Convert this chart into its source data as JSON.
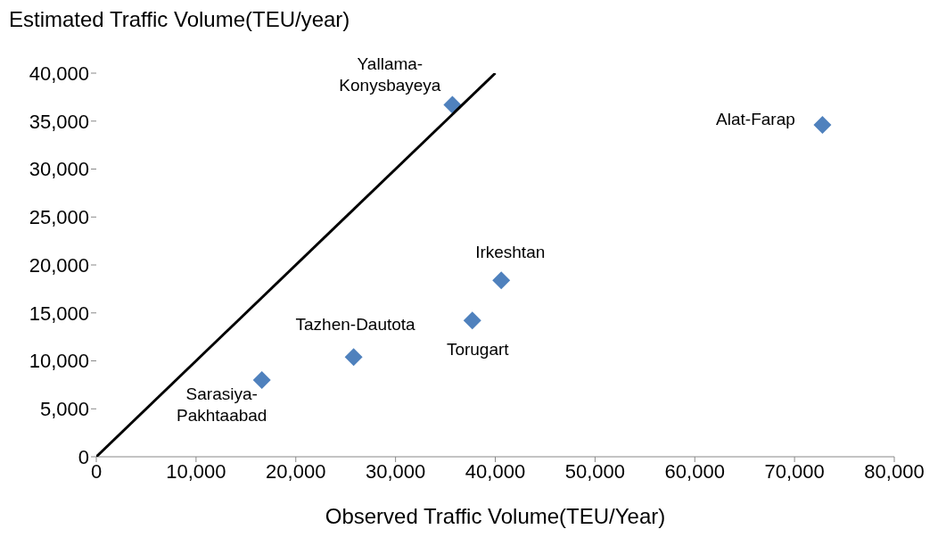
{
  "chart_data": {
    "type": "scatter",
    "xlabel": "Observed Traffic Volume(TEU/Year)",
    "ylabel": "Estimated Traffic Volume(TEU/year)",
    "series": [
      {
        "color": "#4f81bd",
        "x": [
          35700,
          72800,
          40600,
          37700,
          25800,
          16600
        ],
        "values": [
          36700,
          34600,
          18400,
          14200,
          10400,
          8000
        ],
        "marker": "diamond"
      },
      {
        "type": "line",
        "color": "#000000",
        "x": [
          0,
          40000
        ],
        "values": [
          0,
          40000
        ],
        "marker": "none",
        "line_style": "solid"
      }
    ],
    "annotations": [
      {
        "text": "Yallama-\nKonysbayeya",
        "x": 35700,
        "y": 36700
      },
      {
        "text": "Alat-Farap",
        "x": 72800,
        "y": 34600
      },
      {
        "text": "Irkeshtan",
        "x": 40600,
        "y": 18400
      },
      {
        "text": "Torugart",
        "x": 37700,
        "y": 14200
      },
      {
        "text": "Tazhen-Dautota",
        "x": 25800,
        "y": 10400
      },
      {
        "text": "Sarasiya-\nPakhtaabad",
        "x": 16600,
        "y": 8000
      }
    ],
    "xlim": [
      0,
      80000
    ],
    "xticks": [
      0,
      {
        "value": 10000,
        "label": "10,000"
      },
      {
        "value": 20000,
        "label": "20,000"
      },
      {
        "value": 30000,
        "label": "30,000"
      },
      {
        "value": 40000,
        "label": "40,000"
      },
      {
        "value": 50000,
        "label": "50,000"
      },
      {
        "value": 60000,
        "label": "60,000"
      },
      {
        "value": 70000,
        "label": "70,000"
      },
      {
        "value": 80000,
        "label": "80,000"
      }
    ],
    "ylim": [
      0,
      40000
    ],
    "yticks": [
      0,
      {
        "value": 5000,
        "label": "5,000"
      },
      {
        "value": 10000,
        "label": "10,000"
      },
      {
        "value": 15000,
        "label": "15,000"
      },
      {
        "value": 20000,
        "label": "20,000"
      },
      {
        "value": 25000,
        "label": "25,000"
      },
      {
        "value": 30000,
        "label": "30,000"
      },
      {
        "value": 35000,
        "label": "35,000"
      },
      {
        "value": 40000,
        "label": "40,000"
      }
    ],
    "grid": false
  }
}
